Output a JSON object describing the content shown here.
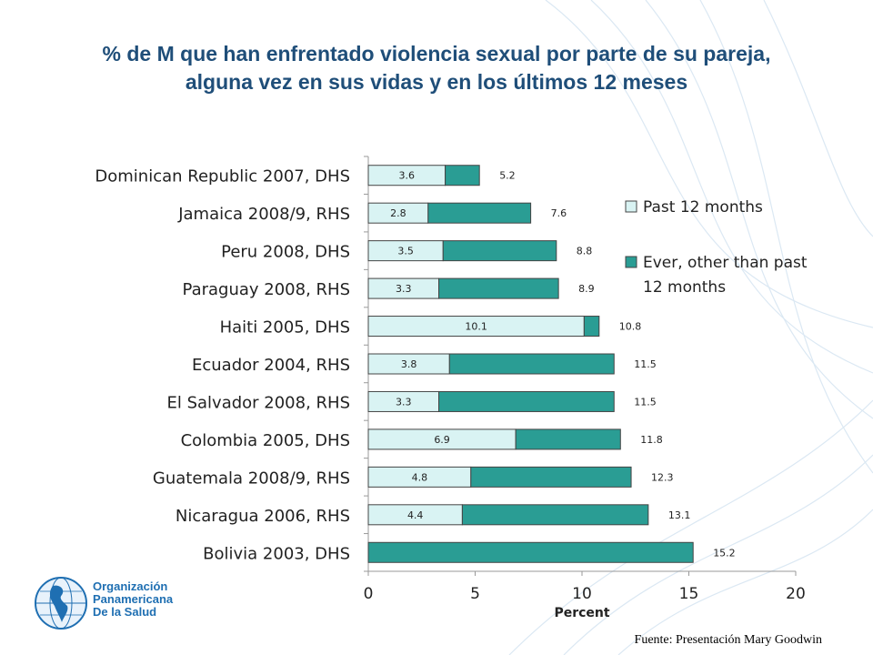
{
  "slide": {
    "title_line1": "% de M que han enfrentado violencia sexual por parte de su pareja,",
    "title_line2": "alguna vez en sus vidas y en los últimos 12 meses",
    "source": "Fuente: Presentación Mary Goodwin"
  },
  "logo": {
    "line1": "Organización",
    "line2": "Panamericana",
    "line3": "De la Salud"
  },
  "chart_data": {
    "type": "bar",
    "orientation": "horizontal",
    "stacked": true,
    "categories": [
      "Dominican Republic 2007, DHS",
      "Jamaica 2008/9, RHS",
      "Peru 2008, DHS",
      "Paraguay 2008, RHS",
      "Haiti 2005, DHS",
      "Ecuador 2004, RHS",
      "El Salvador 2008, RHS",
      "Colombia 2005, DHS",
      "Guatemala 2008/9, RHS",
      "Nicaragua 2006, RHS",
      "Bolivia 2003, DHS"
    ],
    "series": [
      {
        "name": "Past 12 months",
        "color": "#d9f3f3",
        "values": [
          3.6,
          2.8,
          3.5,
          3.3,
          10.1,
          3.8,
          3.3,
          6.9,
          4.8,
          4.4,
          null
        ],
        "labels": [
          "3.6",
          "2.8",
          "3.5",
          "3.3",
          "10.1",
          "3.8",
          "3.3",
          "6.9",
          "4.8",
          "4.4",
          ""
        ]
      },
      {
        "name": "Ever, other than past 12 months",
        "color": "#2a9d94",
        "values": [
          1.6,
          4.8,
          5.3,
          5.6,
          0.7,
          7.7,
          8.2,
          4.9,
          7.5,
          8.7,
          15.2
        ]
      }
    ],
    "totals": [
      5.2,
      7.6,
      8.8,
      8.9,
      10.8,
      11.5,
      11.5,
      11.8,
      12.3,
      13.1,
      15.2
    ],
    "total_labels": [
      "5.2",
      "7.6",
      "8.8",
      "8.9",
      "10.8",
      "11.5",
      "11.5",
      "11.8",
      "12.3",
      "13.1",
      "15.2"
    ],
    "legend_labels": [
      "Past 12 months",
      "Ever, other than past",
      "12 months"
    ],
    "xlabel": "Percent",
    "xlim": [
      0,
      20
    ],
    "xticks": [
      0,
      5,
      10,
      15,
      20
    ],
    "xtick_labels": [
      "0",
      "5",
      "10",
      "15",
      "20"
    ],
    "grid": false,
    "legend_position": "right"
  }
}
